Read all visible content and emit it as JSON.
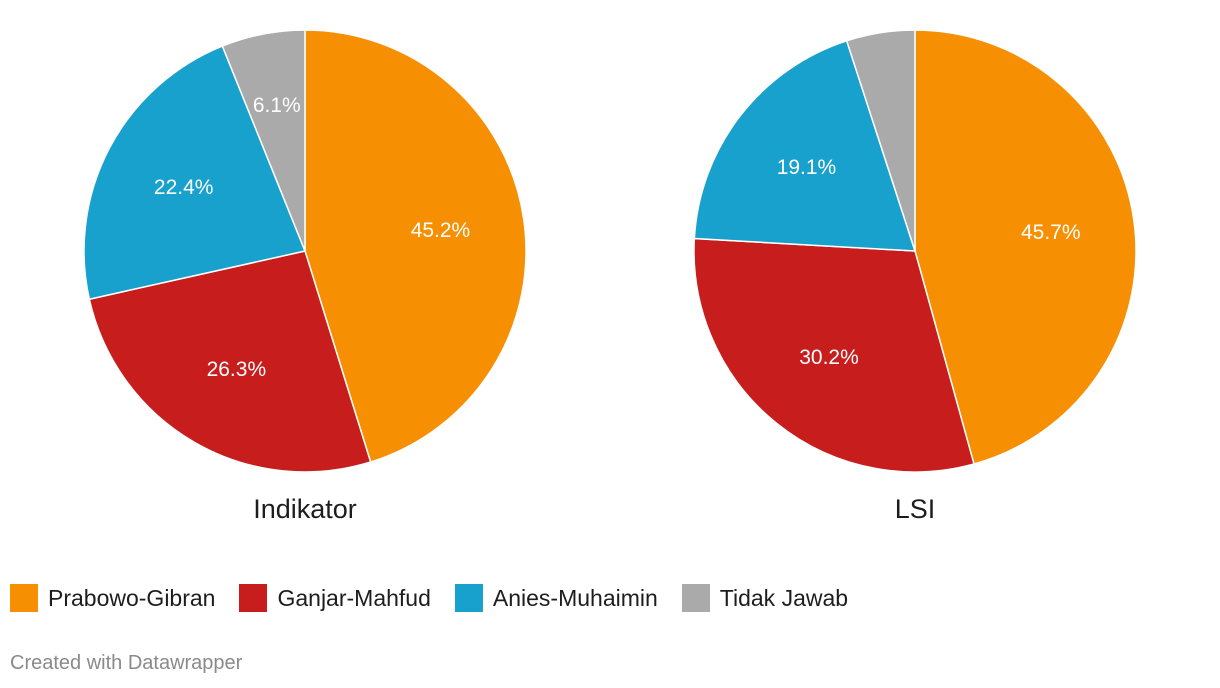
{
  "chart_data": [
    {
      "type": "pie",
      "title": "Indikator",
      "series": [
        {
          "name": "Prabowo-Gibran",
          "value": 45.2,
          "label": "45.2%"
        },
        {
          "name": "Ganjar-Mahfud",
          "value": 26.3,
          "label": "26.3%"
        },
        {
          "name": "Anies-Muhaimin",
          "value": 22.4,
          "label": "22.4%"
        },
        {
          "name": "Tidak Jawab",
          "value": 6.1,
          "label": "6.1%"
        }
      ]
    },
    {
      "type": "pie",
      "title": "LSI",
      "series": [
        {
          "name": "Prabowo-Gibran",
          "value": 45.7,
          "label": "45.7%"
        },
        {
          "name": "Ganjar-Mahfud",
          "value": 30.2,
          "label": "30.2%"
        },
        {
          "name": "Anies-Muhaimin",
          "value": 19.1,
          "label": "19.1%"
        },
        {
          "name": "Tidak Jawab",
          "value": 5.0,
          "label": ""
        }
      ]
    }
  ],
  "legend": [
    {
      "label": "Prabowo-Gibran",
      "color": "#f78f03"
    },
    {
      "label": "Ganjar-Mahfud",
      "color": "#c71e1d"
    },
    {
      "label": "Anies-Muhaimin",
      "color": "#18a1cd"
    },
    {
      "label": "Tidak Jawab",
      "color": "#aaaaaa"
    }
  ],
  "footer": {
    "credit": "Created with Datawrapper"
  }
}
